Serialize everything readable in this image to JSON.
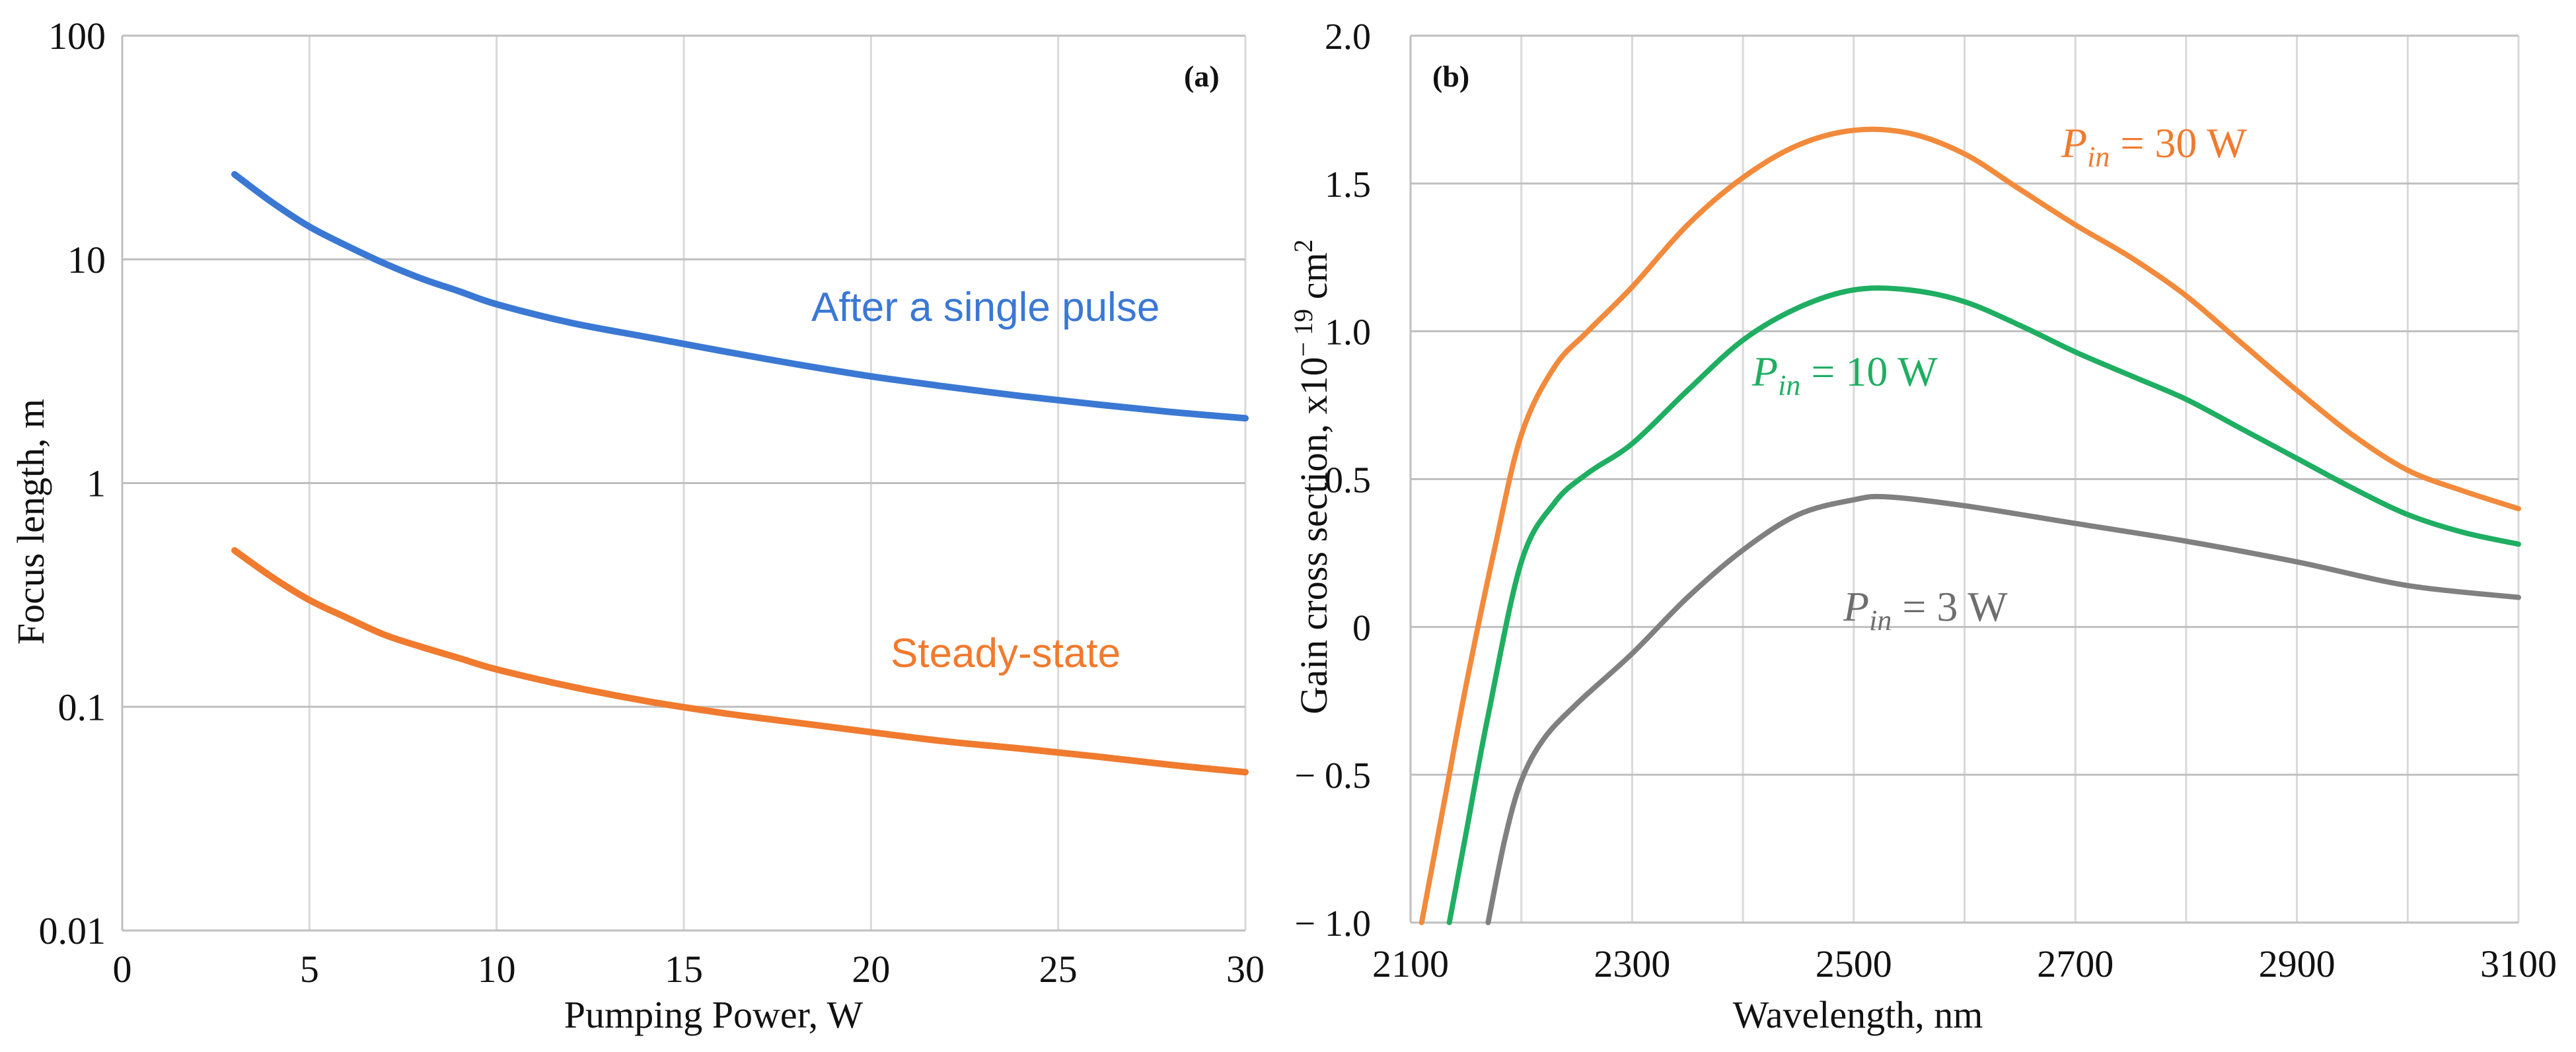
{
  "chart_data": [
    {
      "type": "line",
      "panel_label": "(a)",
      "xlabel": "Pumping Power, W",
      "ylabel": "Focus length, m",
      "xlim": [
        0,
        30
      ],
      "ylim": [
        0.01,
        100
      ],
      "yscale": "log",
      "xticks": [
        0,
        5,
        10,
        15,
        20,
        25,
        30
      ],
      "xtick_labels": [
        "0",
        "5",
        "10",
        "15",
        "20",
        "25",
        "30"
      ],
      "yticks": [
        0.01,
        0.1,
        1,
        10,
        100
      ],
      "ytick_labels": [
        "0.01",
        "0.1",
        "1",
        "10",
        "100"
      ],
      "series": [
        {
          "name": "After a single pulse",
          "color": "#3a78d4",
          "x": [
            3,
            4,
            5,
            6,
            7,
            8,
            9,
            10,
            12,
            14,
            16,
            18,
            20,
            22,
            24,
            26,
            28,
            30
          ],
          "y": [
            24,
            18,
            14,
            11.5,
            9.6,
            8.2,
            7.2,
            6.3,
            5.2,
            4.5,
            3.9,
            3.4,
            3.0,
            2.7,
            2.45,
            2.25,
            2.08,
            1.95
          ]
        },
        {
          "name": "Steady-state",
          "color": "#f07a2e",
          "x": [
            3,
            4,
            5,
            6,
            7,
            8,
            9,
            10,
            12,
            14,
            16,
            18,
            20,
            22,
            24,
            26,
            28,
            30
          ],
          "y": [
            0.5,
            0.38,
            0.3,
            0.25,
            0.21,
            0.185,
            0.165,
            0.147,
            0.123,
            0.106,
            0.094,
            0.085,
            0.077,
            0.07,
            0.065,
            0.06,
            0.055,
            0.051
          ]
        }
      ]
    },
    {
      "type": "line",
      "panel_label": "(b)",
      "xlabel": "Wavelength, nm",
      "ylabel": "Gain cross section, x10",
      "ylabel_exp1": "− 19",
      "ylabel_unit": " cm",
      "ylabel_exp2": "2",
      "xlim": [
        2100,
        3100
      ],
      "ylim": [
        -1.0,
        2.0
      ],
      "xticks": [
        2100,
        2300,
        2500,
        2700,
        2900,
        3100
      ],
      "xtick_labels": [
        "2100",
        "2300",
        "2500",
        "2700",
        "2900",
        "3100"
      ],
      "yticks": [
        -1.0,
        -0.5,
        0,
        0.5,
        1.0,
        1.5,
        2.0
      ],
      "ytick_labels": [
        "− 1.0",
        "− 0.5",
        "0",
        "0.5",
        "1.0",
        "1.5",
        "2.0"
      ],
      "series": [
        {
          "name": "P_in = 30 W",
          "label_prefix": "P",
          "label_sub": "in",
          "label_suffix": " = 30 W",
          "color": "#f28a3c",
          "x": [
            2110,
            2130,
            2150,
            2175,
            2200,
            2230,
            2260,
            2300,
            2350,
            2400,
            2450,
            2500,
            2550,
            2600,
            2650,
            2700,
            2750,
            2800,
            2850,
            2900,
            2950,
            3000,
            3050,
            3100
          ],
          "y": [
            -1.0,
            -0.6,
            -0.2,
            0.25,
            0.65,
            0.88,
            1.0,
            1.15,
            1.36,
            1.52,
            1.63,
            1.68,
            1.67,
            1.6,
            1.48,
            1.36,
            1.25,
            1.12,
            0.96,
            0.8,
            0.65,
            0.53,
            0.46,
            0.4
          ]
        },
        {
          "name": "P_in = 10 W",
          "label_prefix": "P",
          "label_sub": "in",
          "label_suffix": " = 10 W",
          "color": "#1fae62",
          "x": [
            2135,
            2150,
            2170,
            2200,
            2230,
            2260,
            2300,
            2350,
            2400,
            2450,
            2500,
            2550,
            2600,
            2650,
            2700,
            2750,
            2800,
            2850,
            2900,
            2950,
            3000,
            3050,
            3100
          ],
          "y": [
            -1.0,
            -0.7,
            -0.3,
            0.22,
            0.42,
            0.52,
            0.62,
            0.8,
            0.97,
            1.08,
            1.14,
            1.14,
            1.1,
            1.02,
            0.93,
            0.85,
            0.77,
            0.67,
            0.57,
            0.47,
            0.38,
            0.32,
            0.28
          ]
        },
        {
          "name": "P_in = 3 W",
          "label_prefix": "P",
          "label_sub": "in",
          "label_suffix": " = 3 W",
          "color": "#808080",
          "x": [
            2170,
            2185,
            2200,
            2220,
            2250,
            2300,
            2350,
            2400,
            2450,
            2500,
            2530,
            2600,
            2700,
            2800,
            2900,
            3000,
            3100
          ],
          "y": [
            -1.0,
            -0.72,
            -0.52,
            -0.38,
            -0.26,
            -0.09,
            0.1,
            0.26,
            0.38,
            0.43,
            0.44,
            0.41,
            0.35,
            0.29,
            0.22,
            0.14,
            0.1
          ]
        }
      ]
    }
  ]
}
